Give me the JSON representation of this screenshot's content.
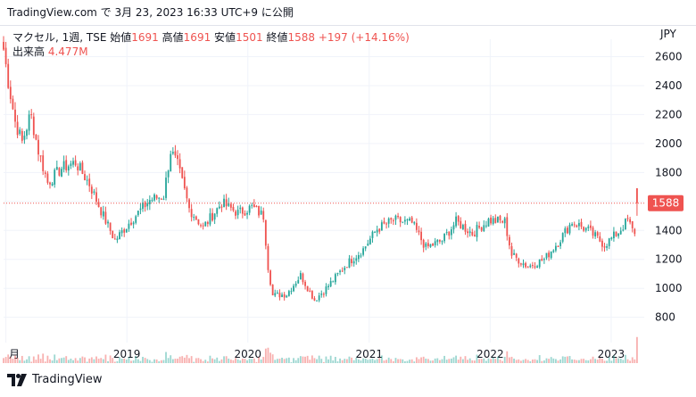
{
  "header": {
    "text": "TradingView.com で 3月 23, 2023 16:33 UTC+9 に公開"
  },
  "legend": {
    "symbol": "マクセル, 1週, TSE",
    "open_label": "始値",
    "open_value": "1691",
    "high_label": "高値",
    "high_value": "1691",
    "low_label": "安値",
    "low_value": "1501",
    "close_label": "終値",
    "close_value": "1588",
    "change": "+197 (+14.16%)",
    "volume_label": "出来高",
    "volume_value": "4.477M"
  },
  "footer": {
    "brand": "TradingView"
  },
  "colors": {
    "up": "#26a69a",
    "down": "#ef5350",
    "text": "#131722",
    "grid": "#f0f3fa",
    "current_price": "#ef5350"
  },
  "icons": [
    "tradingview-logo-icon"
  ],
  "chart_data": {
    "type": "candlestick",
    "currency_label": "JPY",
    "y_ticks": [
      800,
      1000,
      1200,
      1400,
      1600,
      1800,
      2000,
      2200,
      2400,
      2600
    ],
    "ylim": [
      650,
      2720
    ],
    "x_tick_labels": [
      "月",
      "2019",
      "2020",
      "2021",
      "2022",
      "2023"
    ],
    "x_tick_dates": [
      "2018-01-01",
      "2019-01-01",
      "2020-01-01",
      "2021-01-01",
      "2022-01-01",
      "2023-01-01"
    ],
    "x_range": [
      "2017-12-25",
      "2023-03-31"
    ],
    "current_price": 1588,
    "current_price_label": "1588",
    "last_volume": "4.477M",
    "close_path": [
      [
        "2017-12-25",
        2650
      ],
      [
        "2018-01-08",
        2430
      ],
      [
        "2018-01-29",
        2150
      ],
      [
        "2018-02-19",
        2010
      ],
      [
        "2018-03-12",
        2170
      ],
      [
        "2018-03-19",
        2180
      ],
      [
        "2018-04-09",
        1950
      ],
      [
        "2018-05-07",
        1730
      ],
      [
        "2018-06-18",
        1830
      ],
      [
        "2018-07-30",
        1870
      ],
      [
        "2018-09-10",
        1720
      ],
      [
        "2018-10-22",
        1500
      ],
      [
        "2018-11-26",
        1330
      ],
      [
        "2019-01-14",
        1470
      ],
      [
        "2019-03-11",
        1610
      ],
      [
        "2019-04-22",
        1640
      ],
      [
        "2019-05-13",
        1950
      ],
      [
        "2019-06-03",
        1850
      ],
      [
        "2019-07-08",
        1550
      ],
      [
        "2019-08-19",
        1420
      ],
      [
        "2019-10-14",
        1590
      ],
      [
        "2019-12-02",
        1520
      ],
      [
        "2020-01-13",
        1560
      ],
      [
        "2020-02-17",
        1500
      ],
      [
        "2020-03-02",
        1150
      ],
      [
        "2020-03-16",
        950
      ],
      [
        "2020-04-27",
        960
      ],
      [
        "2020-06-08",
        1090
      ],
      [
        "2020-07-20",
        920
      ],
      [
        "2020-08-24",
        1000
      ],
      [
        "2020-10-26",
        1170
      ],
      [
        "2020-12-14",
        1270
      ],
      [
        "2021-01-25",
        1410
      ],
      [
        "2021-03-15",
        1470
      ],
      [
        "2021-05-10",
        1450
      ],
      [
        "2021-06-21",
        1280
      ],
      [
        "2021-08-09",
        1330
      ],
      [
        "2021-09-20",
        1460
      ],
      [
        "2021-11-08",
        1380
      ],
      [
        "2021-12-27",
        1470
      ],
      [
        "2022-02-14",
        1460
      ],
      [
        "2022-03-07",
        1230
      ],
      [
        "2022-04-25",
        1150
      ],
      [
        "2022-06-13",
        1200
      ],
      [
        "2022-07-25",
        1320
      ],
      [
        "2022-09-05",
        1460
      ],
      [
        "2022-10-24",
        1400
      ],
      [
        "2022-12-12",
        1300
      ],
      [
        "2023-01-23",
        1390
      ],
      [
        "2023-02-20",
        1470
      ],
      [
        "2023-03-06",
        1400
      ],
      [
        "2023-03-13",
        1391
      ],
      [
        "2023-03-20",
        1588
      ]
    ]
  }
}
